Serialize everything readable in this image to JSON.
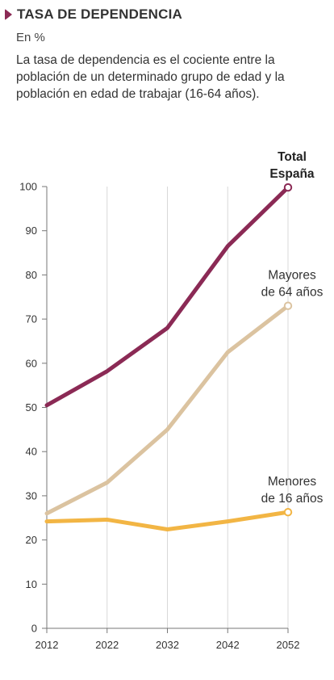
{
  "header": {
    "title": "TASA DE DEPENDENCIA",
    "subtitle": "En %",
    "description": "La tasa de dependencia es el cociente entre la población de un determinado grupo de edad y la población en edad de trabajar (16-64 años)."
  },
  "chart_data": {
    "type": "line",
    "x": [
      2012,
      2022,
      2032,
      2042,
      2052
    ],
    "yticks": [
      0,
      10,
      20,
      30,
      40,
      50,
      60,
      70,
      80,
      90,
      100
    ],
    "ylim": [
      0,
      100
    ],
    "grid": "vertical lines at x ticks",
    "series": [
      {
        "name": "Total España",
        "label_lines": [
          "Total",
          "España"
        ],
        "label_bold": true,
        "color": "#8b2a55",
        "values": [
          50.5,
          58.2,
          68.0,
          86.5,
          99.8
        ]
      },
      {
        "name": "Mayores de 64 años",
        "label_lines": [
          "Mayores",
          "de 64 años"
        ],
        "label_bold": false,
        "color": "#dbc3a0",
        "values": [
          26.0,
          33.0,
          45.0,
          62.5,
          73.0
        ]
      },
      {
        "name": "Menores de 16 años",
        "label_lines": [
          "Menores",
          "de 16 años"
        ],
        "label_bold": false,
        "color": "#f2b544",
        "values": [
          24.2,
          24.6,
          22.4,
          24.2,
          26.3
        ]
      }
    ]
  }
}
